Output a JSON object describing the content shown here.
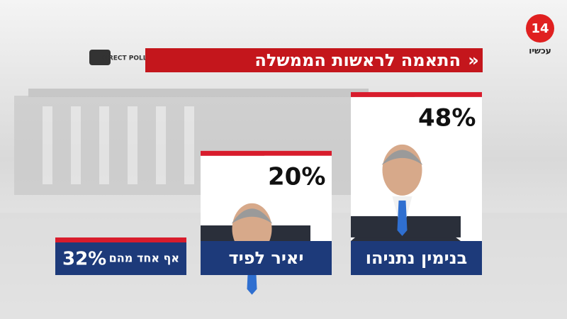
{
  "branding": {
    "channel": "14",
    "channel_name": "עכשיו",
    "pollster": "DIRECT POLLS"
  },
  "chart_data": {
    "type": "bar",
    "title": "התאמה לראשות הממשלה",
    "categories": [
      "בנימין נתניהו",
      "יאיר לפיד",
      "אף אחד מהם"
    ],
    "values": [
      48,
      20,
      32
    ],
    "value_labels": [
      "48%",
      "20%",
      "32%"
    ],
    "color": "#ffffff",
    "accent_color": "#d81c2c",
    "label_color": "#1d3a7a"
  }
}
